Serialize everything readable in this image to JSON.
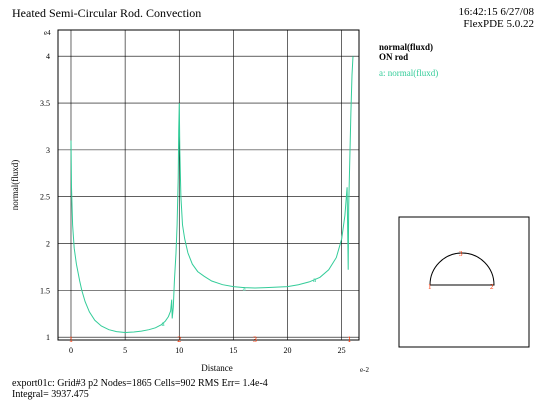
{
  "header": {
    "title": "Heated Semi-Circular Rod. Convection",
    "time": "16:42:15 6/27/08",
    "version": "FlexPDE 5.0.22"
  },
  "legend": {
    "variable": "normal(fluxd)",
    "region": "ON rod",
    "entry_marker": "a",
    "entry": "normal(fluxd)"
  },
  "footer": {
    "line1": "export01c:  Grid#3  p2  Nodes=1865 Cells=902 RMS Err= 1.4e-4",
    "line2": "Integral=  3937.475"
  },
  "chart_data": {
    "type": "line",
    "xlabel": "Distance",
    "ylabel": "normal(fluxd)",
    "x_exponent": "e-2",
    "y_exponent": "e4",
    "xlim": [
      -1.2,
      26.6
    ],
    "ylim": [
      0.97,
      4.28
    ],
    "x_ticks": [
      0,
      5,
      10,
      15,
      20,
      25
    ],
    "y_ticks": [
      1,
      1.5,
      2,
      2.5,
      3,
      3.5,
      4
    ],
    "grid": true,
    "line_color": "#33cc99",
    "series": [
      {
        "name": "normal(fluxd)",
        "points": [
          [
            0,
            3.1
          ],
          [
            0.05,
            2.6
          ],
          [
            0.15,
            2.2
          ],
          [
            0.3,
            1.95
          ],
          [
            0.5,
            1.78
          ],
          [
            0.8,
            1.6
          ],
          [
            1.0,
            1.5
          ],
          [
            1.3,
            1.38
          ],
          [
            1.7,
            1.27
          ],
          [
            2.2,
            1.18
          ],
          [
            2.8,
            1.12
          ],
          [
            3.5,
            1.08
          ],
          [
            4.2,
            1.06
          ],
          [
            5.0,
            1.05
          ],
          [
            5.8,
            1.055
          ],
          [
            6.5,
            1.065
          ],
          [
            7.2,
            1.08
          ],
          [
            7.8,
            1.1
          ],
          [
            8.3,
            1.13
          ],
          [
            8.7,
            1.17
          ],
          [
            9.0,
            1.22
          ],
          [
            9.2,
            1.28
          ],
          [
            9.3,
            1.4
          ],
          [
            9.35,
            1.2
          ],
          [
            9.45,
            1.32
          ],
          [
            9.55,
            1.6
          ],
          [
            9.7,
            1.9
          ],
          [
            9.8,
            2.2
          ],
          [
            9.9,
            2.7
          ],
          [
            9.95,
            3.2
          ],
          [
            10.0,
            3.5
          ],
          [
            10.05,
            3.0
          ],
          [
            10.15,
            2.5
          ],
          [
            10.3,
            2.2
          ],
          [
            10.5,
            2.05
          ],
          [
            10.8,
            1.9
          ],
          [
            11.2,
            1.78
          ],
          [
            11.7,
            1.7
          ],
          [
            12.3,
            1.65
          ],
          [
            13.0,
            1.6
          ],
          [
            14.0,
            1.56
          ],
          [
            15.0,
            1.54
          ],
          [
            16.0,
            1.53
          ],
          [
            17.0,
            1.525
          ],
          [
            18.0,
            1.53
          ],
          [
            19.0,
            1.535
          ],
          [
            20.0,
            1.54
          ],
          [
            21.0,
            1.56
          ],
          [
            22.0,
            1.59
          ],
          [
            23.0,
            1.64
          ],
          [
            23.8,
            1.72
          ],
          [
            24.5,
            1.85
          ],
          [
            25.0,
            2.05
          ],
          [
            25.3,
            2.3
          ],
          [
            25.5,
            2.6
          ],
          [
            25.6,
            1.72
          ],
          [
            25.65,
            2.4
          ],
          [
            25.75,
            2.9
          ],
          [
            25.85,
            3.4
          ],
          [
            25.95,
            3.8
          ],
          [
            26.05,
            4.0
          ]
        ]
      }
    ],
    "markers": [
      {
        "label": "a",
        "x": 8.5,
        "y": 1.15
      },
      {
        "label": "a",
        "x": 16.0,
        "y": 1.53
      },
      {
        "label": "a",
        "x": 22.5,
        "y": 1.62
      }
    ],
    "region_labels": [
      {
        "label": "1",
        "x": 0
      },
      {
        "label": "2",
        "x": 10
      },
      {
        "label": "3",
        "x": 17
      },
      {
        "label": "1",
        "x": 25.7
      }
    ]
  },
  "inset": {
    "labels": [
      "1",
      "2",
      "3"
    ]
  }
}
